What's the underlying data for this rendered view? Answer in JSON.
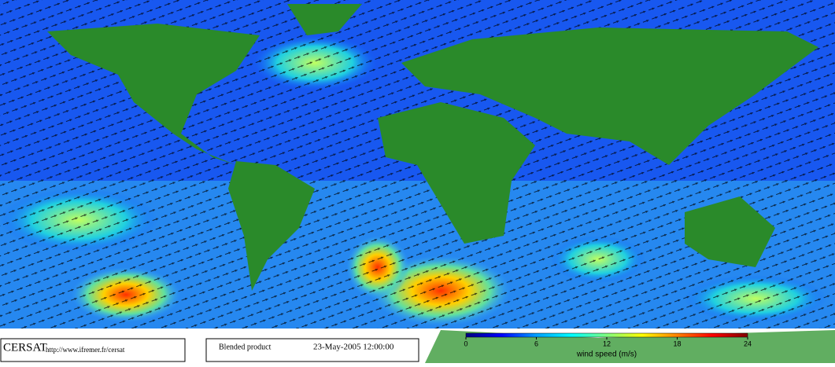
{
  "footer": {
    "logo": "CERSAT",
    "url": "http://www.ifremer.fr/cersat",
    "product": "Blended product",
    "date": "23-May-2005 12:00:00"
  },
  "colorbar": {
    "label": "wind speed (m/s)",
    "lim": [
      0,
      24
    ],
    "ticks": [
      0,
      6,
      12,
      18,
      24
    ],
    "colors": [
      "#000080",
      "#0000ff",
      "#00a0ff",
      "#00ffff",
      "#80ff80",
      "#ffff00",
      "#ff8000",
      "#ff0000",
      "#800000"
    ]
  }
}
